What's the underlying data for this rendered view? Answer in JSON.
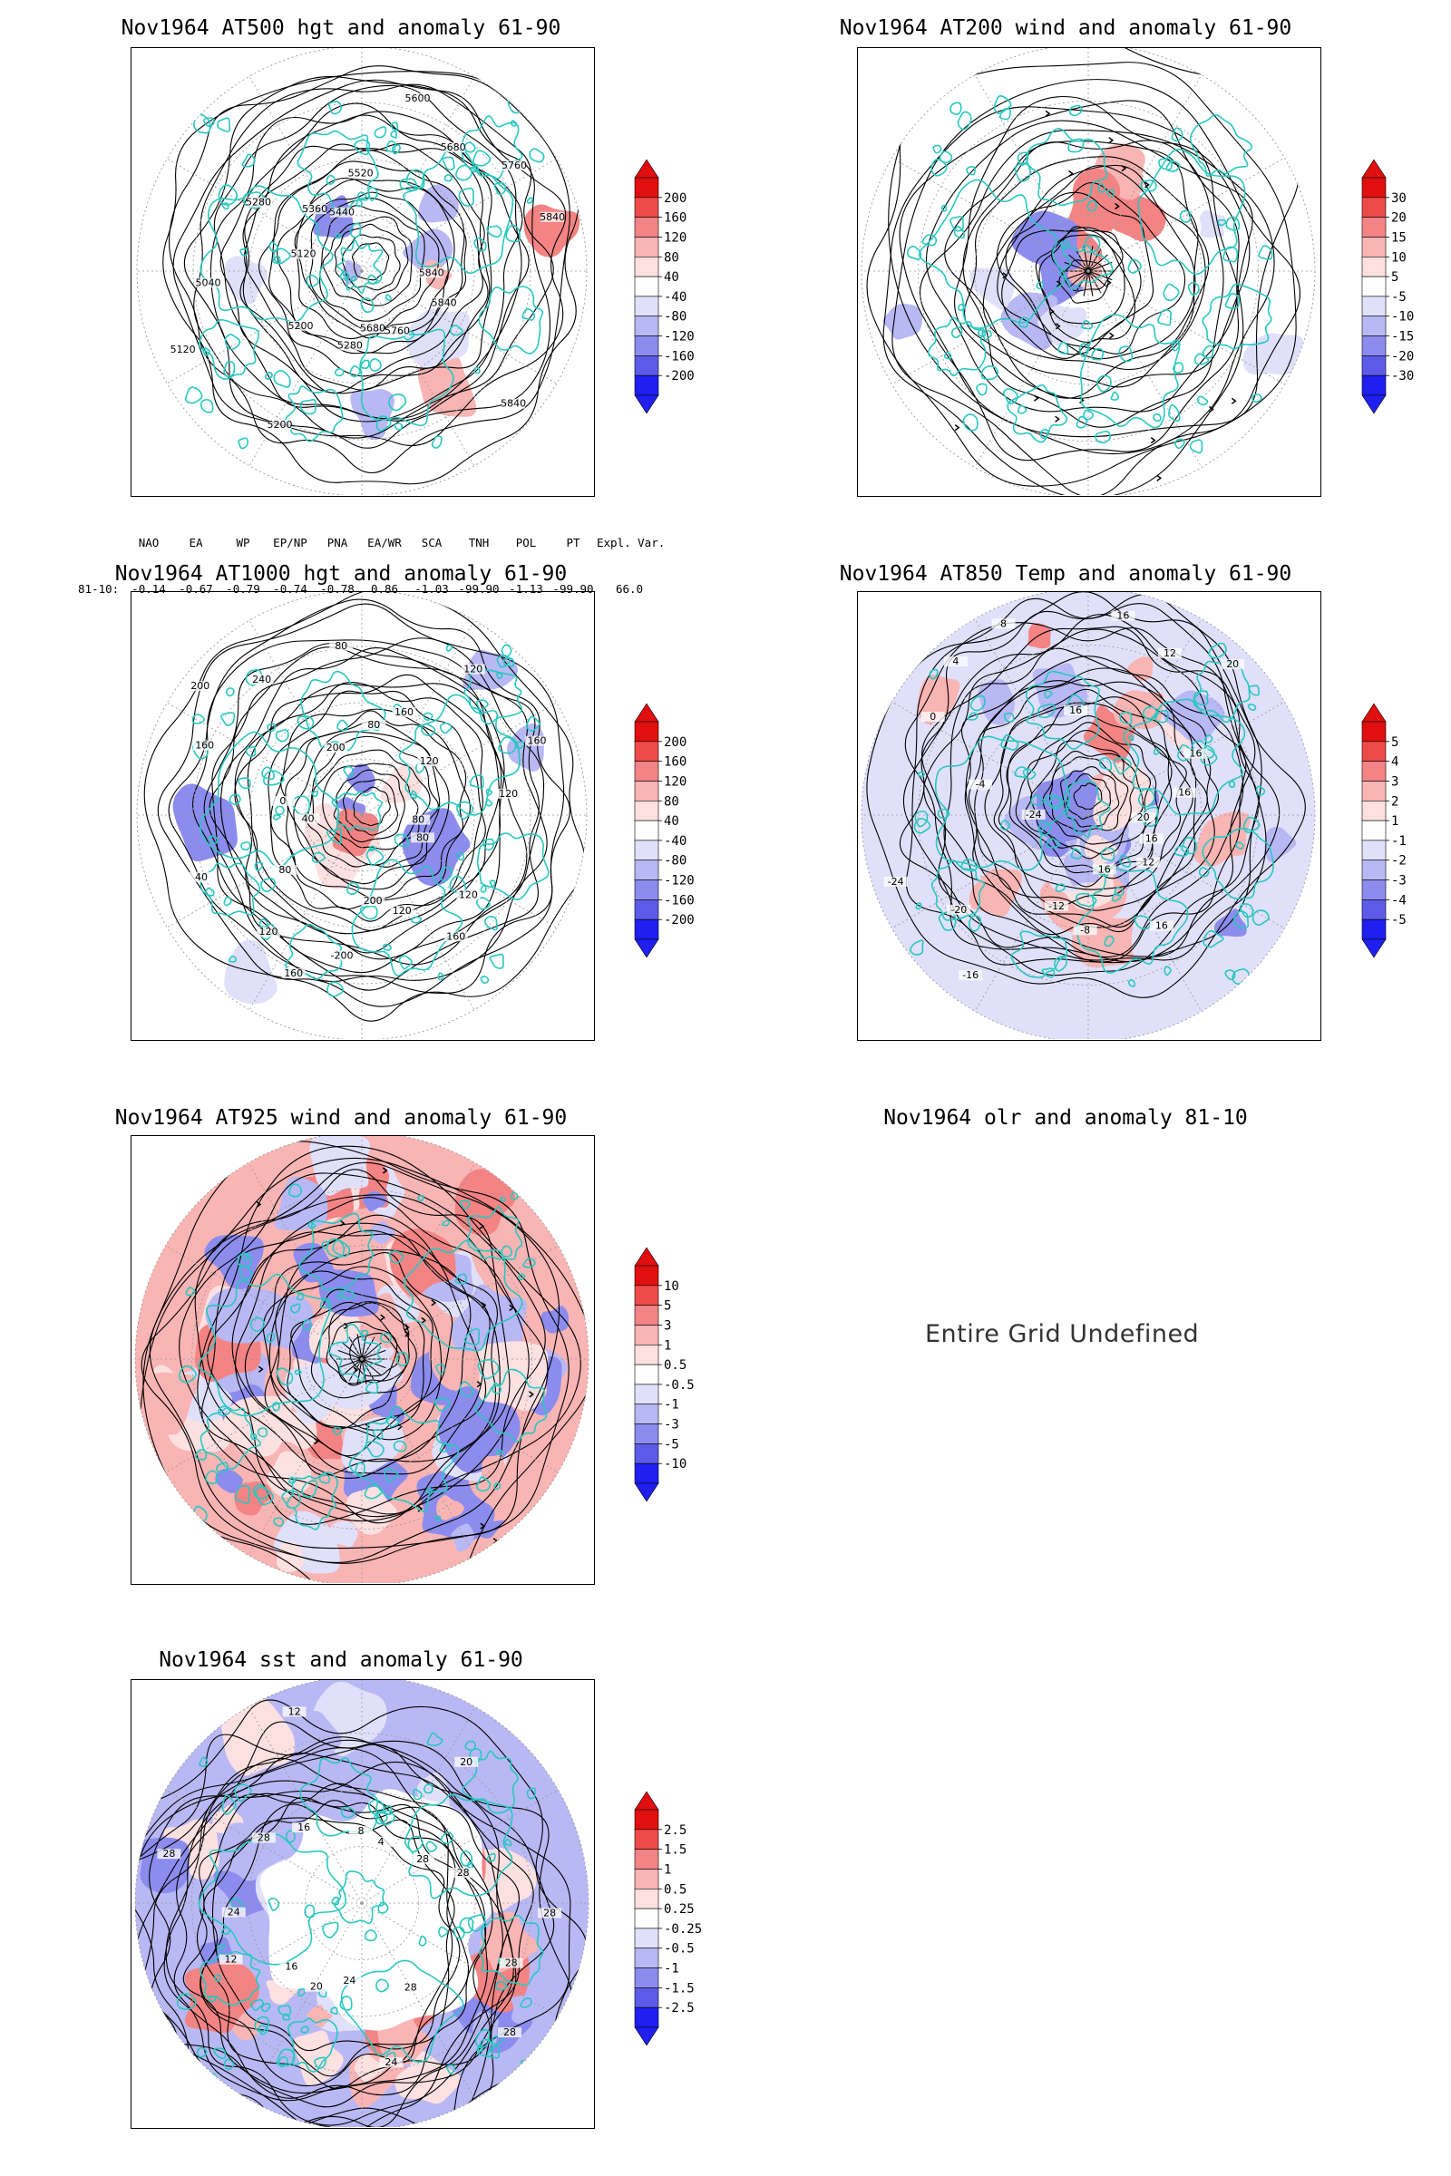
{
  "panels": [
    {
      "id": "p500",
      "title": "Nov1964 AT500 hgt and anomaly 61-90",
      "kind": "hgt",
      "colorbar": [
        "200",
        "160",
        "120",
        "80",
        "40",
        "-40",
        "-80",
        "-120",
        "-160",
        "-200"
      ],
      "contour_labels": [
        "5840",
        "5840",
        "5760",
        "5680",
        "5280",
        "5200",
        "5200",
        "5120",
        "5040",
        "5120",
        "5280",
        "5360",
        "5440",
        "5520",
        "5600",
        "5680",
        "5760",
        "5840",
        "5840"
      ]
    },
    {
      "id": "p200",
      "title": "Nov1964 AT200 wind and anomaly 61-90",
      "kind": "wind",
      "colorbar": [
        "30",
        "20",
        "15",
        "10",
        "5",
        "-5",
        "-10",
        "-15",
        "-20",
        "-30"
      ],
      "contour_labels": []
    },
    {
      "id": "p1000",
      "title": "Nov1964 AT1000 hgt and anomaly 61-90",
      "kind": "hgt",
      "colorbar": [
        "200",
        "160",
        "120",
        "80",
        "40",
        "-40",
        "-80",
        "-120",
        "-160",
        "-200"
      ],
      "contour_labels": [
        "80",
        "120",
        "160",
        "120",
        "200",
        "-200",
        "160",
        "120",
        "80",
        "40",
        "40",
        "0",
        "160",
        "200",
        "240",
        "200",
        "80",
        "80",
        "160",
        "120",
        "120",
        "160",
        "120",
        "80"
      ]
    },
    {
      "id": "p850",
      "title": "Nov1964 AT850 Temp and anomaly 61-90",
      "kind": "temp",
      "colorbar": [
        "5",
        "4",
        "3",
        "2",
        "1",
        "-1",
        "-2",
        "-3",
        "-4",
        "-5"
      ],
      "contour_labels": [
        "16",
        "12",
        "16",
        "16",
        "-8",
        "-12",
        "-16",
        "-20",
        "-24",
        "-24",
        "-4",
        "0",
        "4",
        "8",
        "16",
        "16",
        "12",
        "20",
        "16",
        "16",
        "20"
      ]
    },
    {
      "id": "p925",
      "title": "Nov1964 AT925 wind and anomaly 61-90",
      "kind": "wind925",
      "colorbar": [
        "10",
        "5",
        "3",
        "1",
        "0.5",
        "-0.5",
        "-1",
        "-3",
        "-5",
        "-10"
      ],
      "contour_labels": []
    },
    {
      "id": "polr",
      "title": "Nov1964 olr and anomaly 81-10",
      "kind": "undefined",
      "message": "Entire Grid Undefined"
    },
    {
      "id": "psst",
      "title": "Nov1964 sst and anomaly 61-90",
      "kind": "sst",
      "colorbar": [
        "2.5",
        "1.5",
        "1",
        "0.5",
        "0.25",
        "-0.25",
        "-0.5",
        "-1",
        "-1.5",
        "-2.5"
      ],
      "contour_labels": [
        "28",
        "28",
        "28",
        "24",
        "24",
        "20",
        "16",
        "12",
        "24",
        "28",
        "28",
        "16",
        "12",
        "8",
        "4",
        "20",
        "28",
        "28",
        "28"
      ]
    }
  ],
  "teleconnections": {
    "headers": [
      "NAO",
      "EA",
      "WP",
      "EP/NP",
      "PNA",
      "EA/WR",
      "SCA",
      "TNH",
      "POL",
      "PT",
      "Expl. Var."
    ],
    "row_label": "81-10:",
    "values": [
      "-0.14",
      "-0.67",
      "-0.79",
      "-0.74",
      "-0.78",
      "0.86",
      "-1.03",
      "-99.90",
      "-1.13",
      "-99.90",
      "66.0"
    ]
  },
  "colors": {
    "coast": "#28c8c0",
    "pos_scale": [
      "#fde0e0",
      "#f9b4b4",
      "#f48484",
      "#ee4a4a",
      "#e01010"
    ],
    "neg_scale": [
      "#e0e0fb",
      "#b8b8f4",
      "#8c8cee",
      "#5c5ce8",
      "#1f1ff0"
    ],
    "contour": "#000000"
  }
}
